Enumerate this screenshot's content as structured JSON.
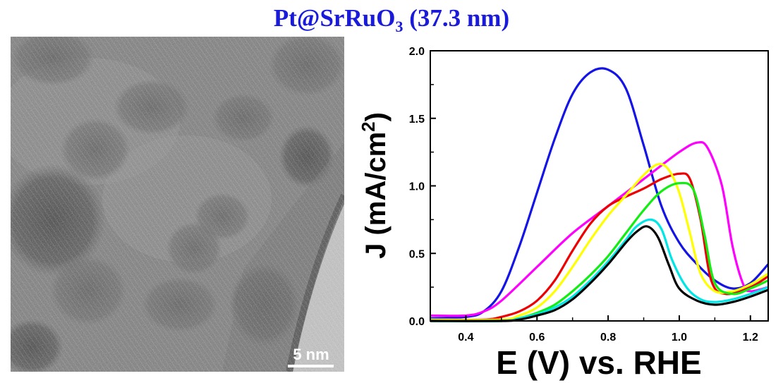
{
  "figure": {
    "title_prefix": "Pt@SrRuO",
    "title_subscript": "3",
    "title_suffix": " (37.3 nm)",
    "title_color": "#1a1adb"
  },
  "micrograph": {
    "scale_bar_label": "5 nm"
  },
  "chart_data": {
    "type": "line",
    "title": "Pt@SrRuO3 (37.3 nm)",
    "xlabel": "E (V) vs. RHE",
    "ylabel": "J (mA/cm²)",
    "xlim": [
      0.3,
      1.25
    ],
    "ylim": [
      0.0,
      2.0
    ],
    "xticks": [
      "0.4",
      "0.6",
      "0.8",
      "1.0",
      "1.2"
    ],
    "xtick_values": [
      0.4,
      0.6,
      0.8,
      1.0,
      1.2
    ],
    "yticks": [
      "0.0",
      "0.5",
      "1.0",
      "1.5",
      "2.0"
    ],
    "ytick_values": [
      0.0,
      0.5,
      1.0,
      1.5,
      2.0
    ],
    "grid": false,
    "legend": "none",
    "series": [
      {
        "name": "blue",
        "color": "#1414e6",
        "x": [
          0.3,
          0.4,
          0.45,
          0.5,
          0.55,
          0.6,
          0.65,
          0.7,
          0.75,
          0.8,
          0.85,
          0.9,
          0.95,
          1.0,
          1.05,
          1.1,
          1.15,
          1.2,
          1.25
        ],
        "y": [
          0.02,
          0.03,
          0.07,
          0.22,
          0.55,
          0.95,
          1.35,
          1.68,
          1.84,
          1.86,
          1.72,
          1.3,
          0.85,
          0.58,
          0.42,
          0.3,
          0.24,
          0.28,
          0.42
        ]
      },
      {
        "name": "magenta",
        "color": "#ff00ff",
        "x": [
          0.3,
          0.4,
          0.45,
          0.5,
          0.6,
          0.7,
          0.8,
          0.9,
          1.0,
          1.05,
          1.08,
          1.12,
          1.15,
          1.18,
          1.2,
          1.25
        ],
        "y": [
          0.04,
          0.04,
          0.07,
          0.15,
          0.4,
          0.65,
          0.85,
          1.05,
          1.25,
          1.32,
          1.28,
          1.0,
          0.55,
          0.27,
          0.22,
          0.25
        ]
      },
      {
        "name": "red",
        "color": "#ee0000",
        "x": [
          0.3,
          0.45,
          0.5,
          0.55,
          0.6,
          0.65,
          0.7,
          0.75,
          0.8,
          0.85,
          0.9,
          0.95,
          1.0,
          1.03,
          1.06,
          1.09,
          1.13,
          1.2,
          1.25
        ],
        "y": [
          0.01,
          0.01,
          0.03,
          0.07,
          0.15,
          0.3,
          0.52,
          0.72,
          0.85,
          0.92,
          0.98,
          1.05,
          1.09,
          1.05,
          0.75,
          0.3,
          0.2,
          0.25,
          0.33
        ]
      },
      {
        "name": "yellow",
        "color": "#ffff00",
        "x": [
          0.3,
          0.5,
          0.55,
          0.6,
          0.65,
          0.7,
          0.75,
          0.8,
          0.85,
          0.9,
          0.94,
          0.97,
          1.0,
          1.03,
          1.06,
          1.1,
          1.15,
          1.2,
          1.25
        ],
        "y": [
          0.01,
          0.01,
          0.04,
          0.1,
          0.22,
          0.4,
          0.6,
          0.78,
          0.93,
          1.08,
          1.16,
          1.12,
          0.95,
          0.65,
          0.35,
          0.22,
          0.22,
          0.27,
          0.35
        ]
      },
      {
        "name": "green",
        "color": "#11ee11",
        "x": [
          0.3,
          0.5,
          0.55,
          0.6,
          0.65,
          0.7,
          0.75,
          0.8,
          0.85,
          0.9,
          0.95,
          1.0,
          1.04,
          1.07,
          1.1,
          1.15,
          1.2,
          1.25
        ],
        "y": [
          0.0,
          0.0,
          0.02,
          0.06,
          0.12,
          0.22,
          0.34,
          0.48,
          0.65,
          0.82,
          0.96,
          1.02,
          0.97,
          0.65,
          0.28,
          0.2,
          0.24,
          0.3
        ]
      },
      {
        "name": "cyan",
        "color": "#00e5e5",
        "x": [
          0.3,
          0.5,
          0.55,
          0.6,
          0.65,
          0.7,
          0.75,
          0.8,
          0.85,
          0.88,
          0.92,
          0.95,
          0.98,
          1.02,
          1.06,
          1.1,
          1.15,
          1.2,
          1.25
        ],
        "y": [
          0.0,
          0.0,
          0.02,
          0.05,
          0.1,
          0.18,
          0.3,
          0.44,
          0.6,
          0.7,
          0.75,
          0.68,
          0.45,
          0.25,
          0.16,
          0.14,
          0.16,
          0.2,
          0.25
        ]
      },
      {
        "name": "black",
        "color": "#000000",
        "x": [
          0.3,
          0.5,
          0.55,
          0.6,
          0.65,
          0.7,
          0.75,
          0.8,
          0.85,
          0.88,
          0.91,
          0.94,
          0.97,
          1.0,
          1.05,
          1.1,
          1.15,
          1.2,
          1.25
        ],
        "y": [
          0.0,
          0.0,
          0.01,
          0.04,
          0.08,
          0.16,
          0.28,
          0.42,
          0.58,
          0.66,
          0.7,
          0.62,
          0.42,
          0.24,
          0.15,
          0.12,
          0.14,
          0.18,
          0.23
        ]
      }
    ]
  }
}
